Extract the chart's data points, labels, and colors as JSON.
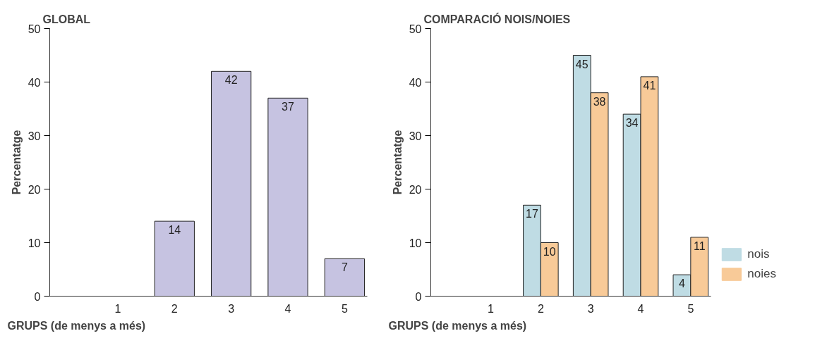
{
  "chart_data": [
    {
      "type": "bar",
      "title": "GLOBAL",
      "xlabel": "GRUPS (de menys a més)",
      "ylabel": "Percentatge",
      "categories": [
        "1",
        "2",
        "3",
        "4",
        "5"
      ],
      "series": [
        {
          "color": "#c6c3e1",
          "values": [
            0,
            14,
            42,
            37,
            7
          ],
          "value_labels": [
            null,
            "14",
            "42",
            "37",
            "7"
          ]
        }
      ],
      "ylim": [
        0,
        50
      ],
      "yticks": [
        0,
        10,
        20,
        30,
        40,
        50
      ],
      "grid": false,
      "legend": false
    },
    {
      "type": "bar",
      "title": "COMPARACIÓ NOIS/NOIES",
      "xlabel": "GRUPS (de menys a més)",
      "ylabel": "Percentatge",
      "categories": [
        "1",
        "2",
        "3",
        "4",
        "5"
      ],
      "series": [
        {
          "name": "nois",
          "color": "#bfdce4",
          "values": [
            0,
            17,
            45,
            34,
            4
          ],
          "value_labels": [
            null,
            "17",
            "45",
            "34",
            "4"
          ]
        },
        {
          "name": "noies",
          "color": "#f8ca98",
          "values": [
            0,
            10,
            38,
            41,
            11
          ],
          "value_labels": [
            null,
            "10",
            "38",
            "41",
            "11"
          ]
        }
      ],
      "ylim": [
        0,
        50
      ],
      "yticks": [
        0,
        10,
        20,
        30,
        40,
        50
      ],
      "grid": false,
      "legend": "bottom right"
    }
  ]
}
